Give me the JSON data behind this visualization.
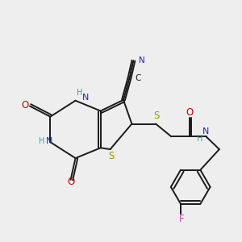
{
  "bg_color": "#eeeeee",
  "bond_color": "#1a1a1a",
  "bond_lw": 1.4,
  "atom_colors": {
    "N": "#2222bb",
    "O": "#cc0000",
    "S": "#999900",
    "F": "#cc44cc",
    "H": "#449999",
    "C": "#1a1a1a"
  },
  "font_size": 7.5,
  "xlim": [
    0,
    10
  ],
  "ylim": [
    0,
    10
  ],
  "figsize": [
    3.0,
    3.0
  ],
  "dpi": 100
}
